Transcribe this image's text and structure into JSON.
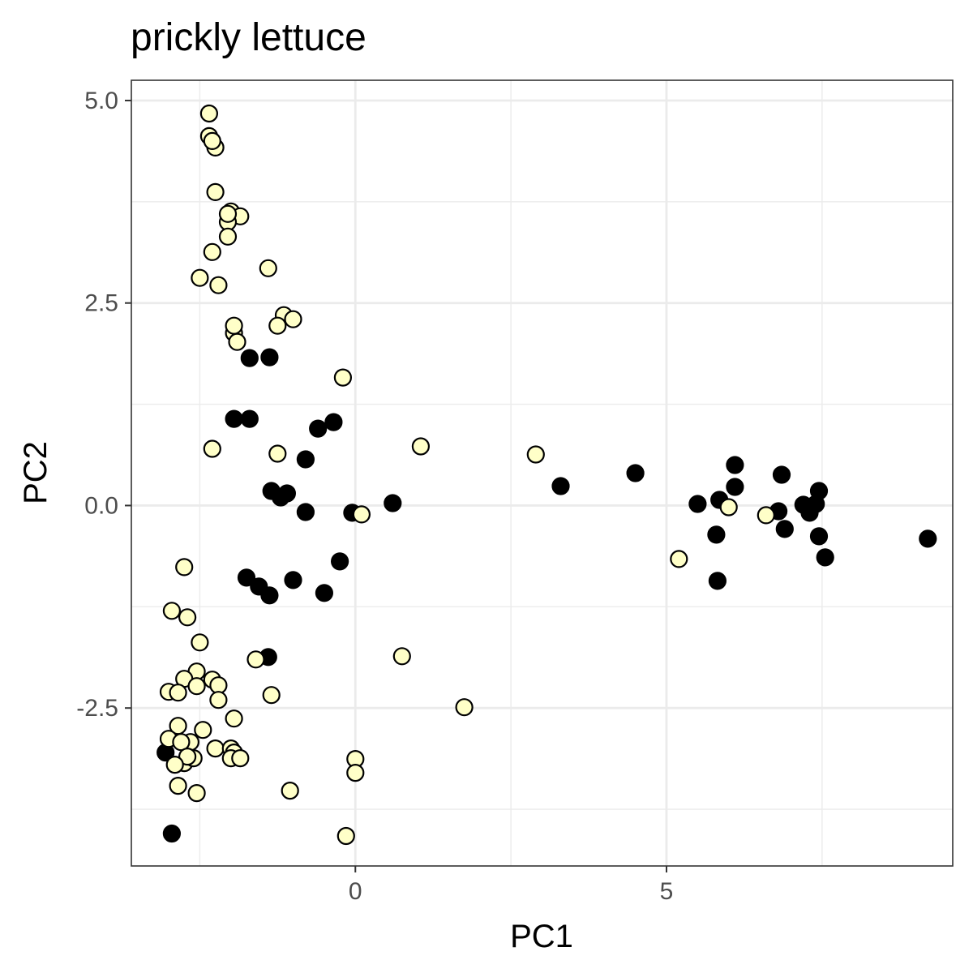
{
  "chart_data": {
    "type": "scatter",
    "title": "prickly lettuce",
    "xlabel": "PC1",
    "ylabel": "PC2",
    "xlim": [
      -3.6,
      9.6
    ],
    "ylim": [
      -4.45,
      5.25
    ],
    "x_ticks": [
      0,
      5
    ],
    "x_tick_labels": [
      "0",
      "5"
    ],
    "y_ticks": [
      -2.5,
      0.0,
      2.5,
      5.0
    ],
    "y_tick_labels": [
      "-2.5",
      "0.0",
      "2.5",
      "5.0"
    ],
    "grid": true,
    "legend": "none",
    "colors": {
      "black_group": "#000000",
      "light_group": "#ffffc8",
      "point_outline": "#000000"
    },
    "series": [
      {
        "color": "#000000",
        "points": [
          [
            -1.7,
            1.82
          ],
          [
            -1.38,
            1.83
          ],
          [
            -1.95,
            1.07
          ],
          [
            -1.7,
            1.07
          ],
          [
            -0.6,
            0.95
          ],
          [
            -0.35,
            1.03
          ],
          [
            -0.8,
            0.57
          ],
          [
            -1.35,
            0.18
          ],
          [
            -1.2,
            0.1
          ],
          [
            -1.1,
            0.15
          ],
          [
            -0.8,
            -0.08
          ],
          [
            -0.05,
            -0.09
          ],
          [
            0.6,
            0.03
          ],
          [
            -0.25,
            -0.69
          ],
          [
            -1.75,
            -0.89
          ],
          [
            -1.55,
            -1.0
          ],
          [
            -1.38,
            -1.11
          ],
          [
            -1.0,
            -0.92
          ],
          [
            -0.5,
            -1.08
          ],
          [
            -1.4,
            -1.87
          ],
          [
            -3.05,
            -3.05
          ],
          [
            -2.95,
            -4.05
          ],
          [
            3.3,
            0.24
          ],
          [
            4.5,
            0.4
          ],
          [
            5.5,
            0.02
          ],
          [
            5.85,
            0.07
          ],
          [
            6.1,
            0.5
          ],
          [
            6.1,
            0.23
          ],
          [
            5.8,
            -0.36
          ],
          [
            5.82,
            -0.93
          ],
          [
            6.85,
            0.38
          ],
          [
            6.8,
            -0.07
          ],
          [
            6.9,
            -0.29
          ],
          [
            7.2,
            0.01
          ],
          [
            7.3,
            -0.09
          ],
          [
            7.4,
            0.02
          ],
          [
            7.45,
            0.18
          ],
          [
            7.45,
            -0.38
          ],
          [
            7.55,
            -0.64
          ],
          [
            9.2,
            -0.41
          ]
        ]
      },
      {
        "color": "#ffffc8",
        "points": [
          [
            -2.35,
            4.84
          ],
          [
            -2.35,
            4.56
          ],
          [
            -2.25,
            4.42
          ],
          [
            -2.3,
            4.5
          ],
          [
            -2.25,
            3.87
          ],
          [
            -2.0,
            3.63
          ],
          [
            -1.85,
            3.57
          ],
          [
            -2.05,
            3.5
          ],
          [
            -2.05,
            3.6
          ],
          [
            -2.05,
            3.32
          ],
          [
            -2.3,
            3.13
          ],
          [
            -2.5,
            2.81
          ],
          [
            -2.2,
            2.72
          ],
          [
            -1.4,
            2.93
          ],
          [
            -1.15,
            2.35
          ],
          [
            -1.0,
            2.3
          ],
          [
            -1.25,
            2.22
          ],
          [
            -1.95,
            2.13
          ],
          [
            -1.95,
            2.22
          ],
          [
            -1.9,
            2.02
          ],
          [
            -0.2,
            1.58
          ],
          [
            -2.3,
            0.7
          ],
          [
            -1.25,
            0.64
          ],
          [
            1.05,
            0.73
          ],
          [
            0.1,
            -0.11
          ],
          [
            2.9,
            0.63
          ],
          [
            6.0,
            -0.02
          ],
          [
            6.6,
            -0.12
          ],
          [
            5.2,
            -0.66
          ],
          [
            -2.75,
            -0.76
          ],
          [
            -2.95,
            -1.3
          ],
          [
            -2.7,
            -1.38
          ],
          [
            -2.5,
            -1.69
          ],
          [
            -1.6,
            -1.9
          ],
          [
            0.75,
            -1.86
          ],
          [
            -2.55,
            -2.05
          ],
          [
            -2.75,
            -2.14
          ],
          [
            -2.3,
            -2.15
          ],
          [
            -2.2,
            -2.22
          ],
          [
            -3.0,
            -2.3
          ],
          [
            -2.85,
            -2.31
          ],
          [
            -2.55,
            -2.23
          ],
          [
            -2.2,
            -2.4
          ],
          [
            -1.35,
            -2.34
          ],
          [
            1.75,
            -2.49
          ],
          [
            -1.95,
            -2.63
          ],
          [
            -2.45,
            -2.77
          ],
          [
            -2.85,
            -2.72
          ],
          [
            -3.0,
            -2.88
          ],
          [
            -2.65,
            -2.92
          ],
          [
            -2.8,
            -2.92
          ],
          [
            -2.25,
            -3.0
          ],
          [
            -2.0,
            -3.0
          ],
          [
            -1.95,
            -3.05
          ],
          [
            -2.0,
            -3.12
          ],
          [
            -1.85,
            -3.12
          ],
          [
            -2.75,
            -3.18
          ],
          [
            -2.6,
            -3.12
          ],
          [
            -2.7,
            -3.1
          ],
          [
            -2.9,
            -3.2
          ],
          [
            -2.85,
            -3.46
          ],
          [
            -2.55,
            -3.55
          ],
          [
            0.0,
            -3.13
          ],
          [
            0.0,
            -3.3
          ],
          [
            -1.05,
            -3.52
          ],
          [
            -0.15,
            -4.08
          ]
        ]
      }
    ]
  }
}
